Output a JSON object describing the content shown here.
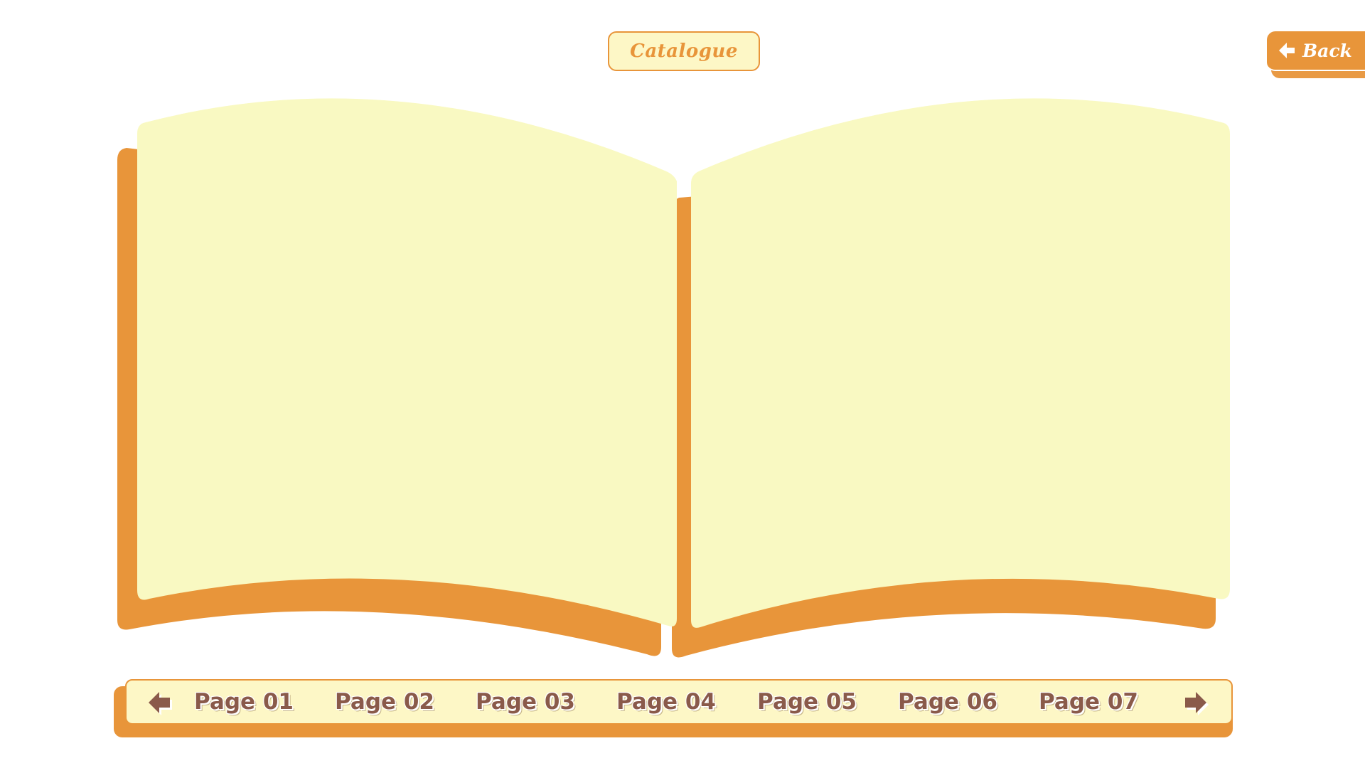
{
  "header": {
    "catalogue_label": "Catalogue",
    "back_label": "Back"
  },
  "pagination": {
    "pages": [
      {
        "label": "Page 01"
      },
      {
        "label": "Page 02"
      },
      {
        "label": "Page 03"
      },
      {
        "label": "Page 04"
      },
      {
        "label": "Page 05"
      },
      {
        "label": "Page 06"
      },
      {
        "label": "Page 07"
      }
    ],
    "prev_icon": "arrow-left-icon",
    "next_icon": "arrow-right-icon"
  },
  "colors": {
    "accent_orange": "#e8953a",
    "page_cream": "#f9f9c2",
    "label_brown": "#8a5a4a",
    "background": "#ffffff"
  }
}
